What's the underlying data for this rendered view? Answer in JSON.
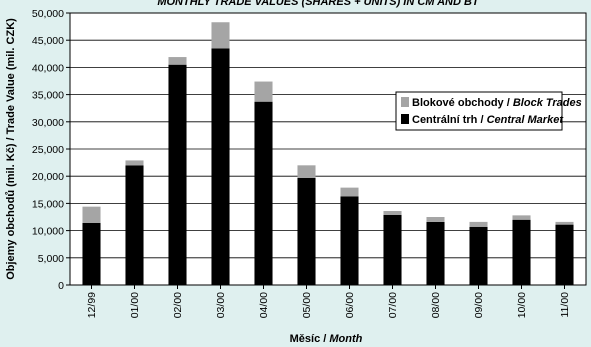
{
  "chart_data": {
    "type": "bar",
    "stacked": true,
    "title": "MONTHLY TRADE VALUES (SHARES + UNITS) IN CM AND BT",
    "xlabel_main": "Měsíc / ",
    "xlabel_italic": "Month",
    "ylabel": "Objemy obchodů (mil. Kč) / Trade Value (mil. CZK)",
    "ylim": [
      0,
      50000
    ],
    "yticks": [
      "0",
      "5,000",
      "10,000",
      "15,000",
      "20,000",
      "25,000",
      "30,000",
      "35,000",
      "40,000",
      "45,000",
      "50,000"
    ],
    "grid": true,
    "legend_position": "right",
    "categories": [
      "12/99",
      "01/00",
      "02/00",
      "03/00",
      "04/00",
      "05/00",
      "06/00",
      "07/00",
      "08/00",
      "09/00",
      "10/00",
      "11/00"
    ],
    "series": [
      {
        "name": "Centrální trh / Central Market",
        "name_main": "Centrální trh / ",
        "name_italic": "Central Market",
        "color": "#000000",
        "values": [
          11400,
          22000,
          40500,
          43500,
          33700,
          19700,
          16300,
          12900,
          11600,
          10700,
          12000,
          11100
        ]
      },
      {
        "name": "Blokové obchody / Block Trades",
        "name_main": "Blokové obchody / ",
        "name_italic": "Block Trades",
        "color": "#a5a5a5",
        "values": [
          3000,
          900,
          1400,
          4800,
          3700,
          2300,
          1600,
          700,
          900,
          900,
          800,
          500
        ]
      }
    ]
  },
  "colors": {
    "background": "#dff0ef",
    "plot_background": "#ffffff",
    "grid": "#000000"
  }
}
